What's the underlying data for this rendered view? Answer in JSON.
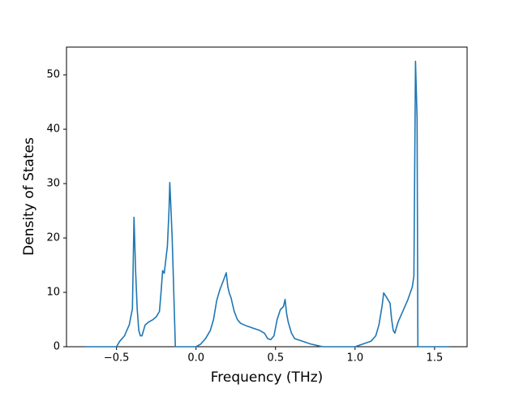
{
  "chart_data": {
    "type": "line",
    "xlabel": "Frequency (THz)",
    "ylabel": "Density of States",
    "x": [
      -0.7,
      -0.5,
      -0.48,
      -0.45,
      -0.42,
      -0.4,
      -0.39,
      -0.38,
      -0.37,
      -0.36,
      -0.35,
      -0.34,
      -0.33,
      -0.32,
      -0.3,
      -0.27,
      -0.25,
      -0.23,
      -0.22,
      -0.21,
      -0.2,
      -0.19,
      -0.18,
      -0.17,
      -0.165,
      -0.16,
      -0.15,
      -0.14,
      -0.13,
      -0.1,
      0.0,
      0.03,
      0.06,
      0.09,
      0.11,
      0.13,
      0.15,
      0.17,
      0.19,
      0.2,
      0.21,
      0.22,
      0.24,
      0.26,
      0.28,
      0.32,
      0.36,
      0.4,
      0.43,
      0.45,
      0.47,
      0.49,
      0.51,
      0.53,
      0.55,
      0.56,
      0.57,
      0.58,
      0.6,
      0.62,
      0.67,
      0.72,
      0.78,
      0.8,
      1.0,
      1.05,
      1.1,
      1.13,
      1.15,
      1.17,
      1.18,
      1.2,
      1.22,
      1.23,
      1.24,
      1.25,
      1.27,
      1.3,
      1.33,
      1.36,
      1.37,
      1.38,
      1.39,
      1.395,
      1.59
    ],
    "series": [
      {
        "color": "#1f77b4",
        "values": [
          0,
          0,
          1,
          2,
          4,
          7,
          23.8,
          14,
          7,
          3,
          2,
          2,
          3,
          4,
          4.5,
          5,
          5.5,
          6.5,
          10,
          14,
          13.5,
          16,
          18.5,
          25,
          30.2,
          27,
          20,
          10,
          0,
          0,
          0,
          0.5,
          1.5,
          3,
          5,
          8.5,
          10.5,
          12,
          13.6,
          11,
          9.8,
          9,
          6.5,
          5,
          4.3,
          3.8,
          3.4,
          3,
          2.5,
          1.5,
          1.3,
          2,
          5,
          6.8,
          7.4,
          8.7,
          6,
          4.5,
          2.5,
          1.5,
          1,
          0.5,
          0.1,
          0,
          0,
          0.5,
          1,
          2,
          4,
          7.5,
          9.9,
          9,
          8,
          5,
          3,
          2.5,
          4.5,
          6.5,
          8.5,
          11,
          13,
          52.5,
          42,
          0,
          0
        ]
      }
    ],
    "xlim": [
      -0.8145,
      1.7045
    ],
    "ylim": [
      0,
      55.1
    ],
    "xticks": [
      {
        "value": -0.5,
        "label": "−0.5"
      },
      {
        "value": 0,
        "label": "0.0"
      },
      {
        "value": 0.5,
        "label": "0.5"
      },
      {
        "value": 1,
        "label": "1.0"
      },
      {
        "value": 1.5,
        "label": "1.5"
      }
    ],
    "yticks": [
      0,
      10,
      20,
      30,
      40,
      50
    ]
  }
}
